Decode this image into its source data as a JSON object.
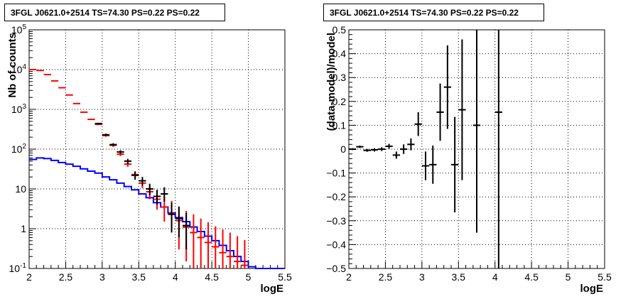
{
  "chart_data": [
    {
      "type": "line",
      "title": "3FGL J0621.0+2514 TS=74.30 PS=0.22 PS=0.22",
      "xlabel": "logE",
      "ylabel": "Nb of counts",
      "xlim": [
        2,
        5.5
      ],
      "ylim": [
        0.1,
        100000
      ],
      "yscale": "log",
      "grid": true,
      "xticks": [
        "2",
        "2.5",
        "3",
        "3.5",
        "4",
        "4.5",
        "5",
        "5.5"
      ],
      "yticks": [
        "10^{-1}",
        "1",
        "10",
        "10^{2}",
        "10^{3}",
        "10^{4}",
        "10^{5}"
      ],
      "series": [
        {
          "style": "step",
          "color": "#0000ff",
          "x": [
            2.05,
            2.15,
            2.25,
            2.35,
            2.45,
            2.55,
            2.65,
            2.75,
            2.85,
            2.95,
            3.05,
            3.15,
            3.25,
            3.35,
            3.45,
            3.55,
            3.65,
            3.75,
            3.85,
            3.95,
            4.05,
            4.15,
            4.25,
            4.35,
            4.45,
            4.55,
            4.65,
            4.75,
            4.85,
            4.95,
            5.05,
            5.15,
            5.25,
            5.35,
            5.45
          ],
          "values": [
            55,
            60,
            58,
            52,
            46,
            42,
            37,
            32,
            28,
            25,
            20,
            17,
            14,
            11.5,
            9.5,
            7.5,
            6,
            4.5,
            3.5,
            2.5,
            1.9,
            1.5,
            1.1,
            0.85,
            0.65,
            0.5,
            0.38,
            0.28,
            0.2,
            0.15,
            0.11,
            0.1,
            0.1,
            0.1,
            0.1
          ]
        },
        {
          "style": "errorbar",
          "color": "#ff0000",
          "x": [
            2.05,
            2.15,
            2.25,
            2.35,
            2.45,
            2.55,
            2.65,
            2.75,
            2.85,
            2.95,
            3.05,
            3.15,
            3.25,
            3.35,
            3.45,
            3.55,
            3.65,
            3.75,
            3.85,
            3.95,
            4.05,
            4.15,
            4.25,
            4.35,
            4.45,
            4.55,
            4.65,
            4.75,
            4.85,
            4.95
          ],
          "values": [
            10000,
            9500,
            7500,
            5200,
            3500,
            2300,
            1400,
            850,
            560,
            420,
            220,
            125,
            75,
            42,
            23,
            14,
            8.5,
            5.5,
            3.5,
            2.4,
            1.6,
            1.1,
            0.8,
            0.6,
            0.45,
            0.35,
            0.25,
            0.2,
            0.15,
            0.12
          ],
          "err_lo": [
            0,
            0,
            0,
            0,
            0,
            0,
            0,
            0,
            0,
            0,
            15,
            10,
            8,
            6,
            4.5,
            3.5,
            3,
            2.5,
            2,
            1.5,
            1.3,
            0.95,
            0.7,
            0.55,
            0.4,
            0.32,
            0.23,
            0.18,
            0.14,
            0.11
          ],
          "err_hi": [
            0,
            0,
            0,
            0,
            0,
            0,
            0,
            0,
            0,
            0,
            15,
            10,
            8,
            7,
            5,
            4,
            3.5,
            3.5,
            3,
            2.6,
            2,
            1.7,
            1.5,
            1.2,
            1,
            0.8,
            0.7,
            0.6,
            0.5,
            0.4
          ]
        },
        {
          "style": "errorbar",
          "color": "#000000",
          "x": [
            2.95,
            3.05,
            3.15,
            3.25,
            3.35,
            3.45,
            3.55,
            3.65,
            3.75,
            3.85,
            3.95,
            4.05,
            4.15
          ],
          "values": [
            440,
            230,
            130,
            85,
            50,
            22,
            16,
            10,
            6.5,
            7.5,
            2.3,
            1.8,
            1.2
          ],
          "err_lo": [
            20,
            15,
            11,
            9,
            7,
            5,
            4,
            3,
            2.5,
            2.7,
            1.5,
            1.2,
            0.9
          ],
          "err_hi": [
            20,
            15,
            11,
            9,
            7,
            5,
            4,
            3.5,
            3,
            3.5,
            2.2,
            1.8,
            1.3
          ]
        }
      ]
    },
    {
      "type": "scatter",
      "title": "3FGL J0621.0+2514 TS=74.30 PS=0.22 PS=0.22",
      "xlabel": "logE",
      "ylabel": "(data-model)/model",
      "xlim": [
        2,
        5.5
      ],
      "ylim": [
        -0.5,
        0.5
      ],
      "grid": true,
      "xticks": [
        "2",
        "2.5",
        "3",
        "3.5",
        "4",
        "4.5",
        "5",
        "5.5"
      ],
      "yticks": [
        "−0.5",
        "−0.4",
        "−0.3",
        "−0.2",
        "−0.1",
        "0",
        "0.1",
        "0.2",
        "0.3",
        "0.4",
        "0.5"
      ],
      "series": [
        {
          "style": "errorbar",
          "color": "#000000",
          "x": [
            2.05,
            2.15,
            2.25,
            2.35,
            2.45,
            2.55,
            2.65,
            2.75,
            2.85,
            2.95,
            3.05,
            3.15,
            3.25,
            3.35,
            3.45,
            3.55,
            3.75,
            4.05
          ],
          "values": [
            0.0,
            0.01,
            -0.005,
            -0.003,
            0.0,
            0.012,
            -0.025,
            0.0,
            0.02,
            0.105,
            -0.07,
            -0.065,
            0.155,
            0.26,
            -0.065,
            0.165,
            0.1,
            0.155
          ],
          "err": [
            0.004,
            0.005,
            0.006,
            0.007,
            0.008,
            0.01,
            0.015,
            0.02,
            0.025,
            0.05,
            0.06,
            0.08,
            0.12,
            0.175,
            0.2,
            0.295,
            0.45,
            1.0
          ]
        }
      ]
    }
  ]
}
